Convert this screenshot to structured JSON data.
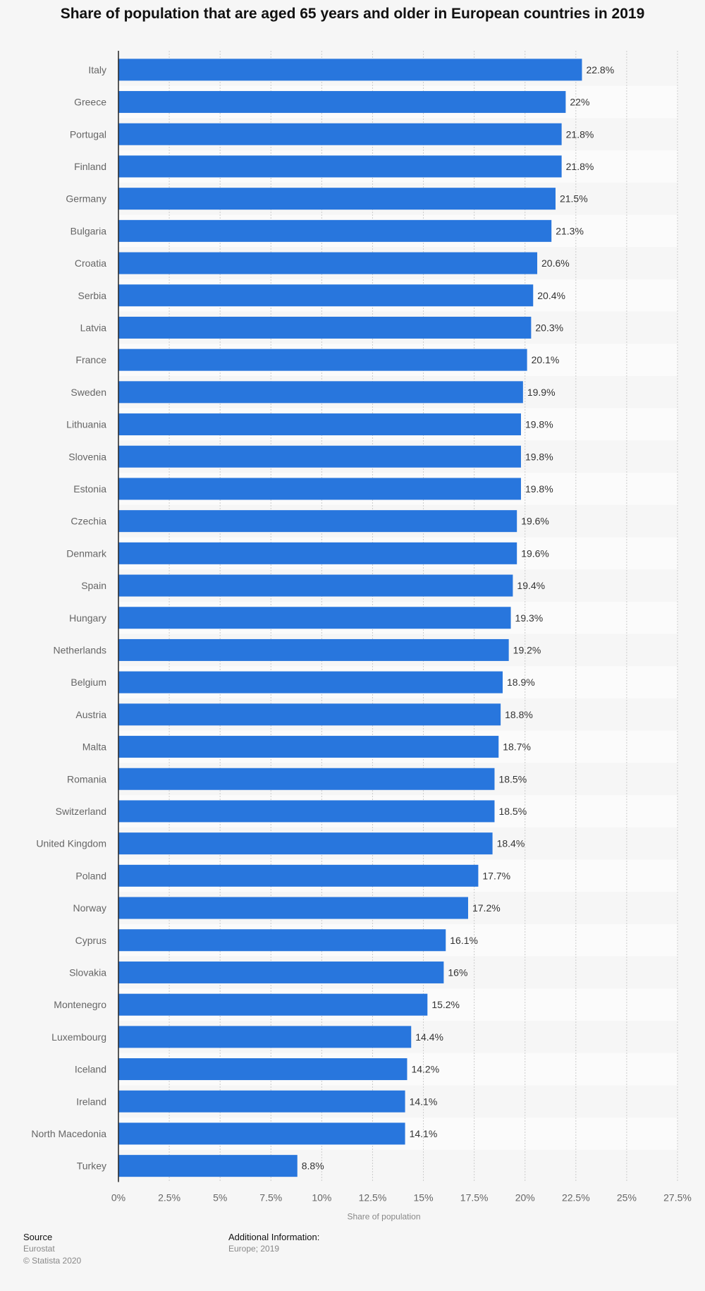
{
  "page": {
    "title": "Share of population that are aged 65 years and older in European countries in 2019"
  },
  "colors": {
    "bar": "#2876dd",
    "background": "#f6f6f6",
    "band": "#fbfbfb",
    "axis": "#222222",
    "grid": "#cccccc"
  },
  "chart_data": {
    "type": "bar",
    "orientation": "horizontal",
    "title": "Share of population that are aged 65 years and older in European countries in 2019",
    "xlabel": "Share of population",
    "ylabel": "",
    "xlim": [
      0,
      27.5
    ],
    "grid": true,
    "x_ticks": [
      "0%",
      "2.5%",
      "5%",
      "7.5%",
      "10%",
      "12.5%",
      "15%",
      "17.5%",
      "20%",
      "22.5%",
      "25%",
      "27.5%"
    ],
    "categories": [
      "Italy",
      "Greece",
      "Portugal",
      "Finland",
      "Germany",
      "Bulgaria",
      "Croatia",
      "Serbia",
      "Latvia",
      "France",
      "Sweden",
      "Lithuania",
      "Slovenia",
      "Estonia",
      "Czechia",
      "Denmark",
      "Spain",
      "Hungary",
      "Netherlands",
      "Belgium",
      "Austria",
      "Malta",
      "Romania",
      "Switzerland",
      "United Kingdom",
      "Poland",
      "Norway",
      "Cyprus",
      "Slovakia",
      "Montenegro",
      "Luxembourg",
      "Iceland",
      "Ireland",
      "North Macedonia",
      "Turkey"
    ],
    "values": [
      22.8,
      22,
      21.8,
      21.8,
      21.5,
      21.3,
      20.6,
      20.4,
      20.3,
      20.1,
      19.9,
      19.8,
      19.8,
      19.8,
      19.6,
      19.6,
      19.4,
      19.3,
      19.2,
      18.9,
      18.8,
      18.7,
      18.5,
      18.5,
      18.4,
      17.7,
      17.2,
      16.1,
      16,
      15.2,
      14.4,
      14.2,
      14.1,
      14.1,
      8.8
    ],
    "value_labels": [
      "22.8%",
      "22%",
      "21.8%",
      "21.8%",
      "21.5%",
      "21.3%",
      "20.6%",
      "20.4%",
      "20.3%",
      "20.1%",
      "19.9%",
      "19.8%",
      "19.8%",
      "19.8%",
      "19.6%",
      "19.6%",
      "19.4%",
      "19.3%",
      "19.2%",
      "18.9%",
      "18.8%",
      "18.7%",
      "18.5%",
      "18.5%",
      "18.4%",
      "17.7%",
      "17.2%",
      "16.1%",
      "16%",
      "15.2%",
      "14.4%",
      "14.2%",
      "14.1%",
      "14.1%",
      "8.8%"
    ]
  },
  "footer": {
    "source_heading": "Source",
    "source_lines": [
      "Eurostat",
      "© Statista 2020"
    ],
    "info_heading": "Additional Information:",
    "info_lines": [
      "Europe; 2019"
    ]
  }
}
